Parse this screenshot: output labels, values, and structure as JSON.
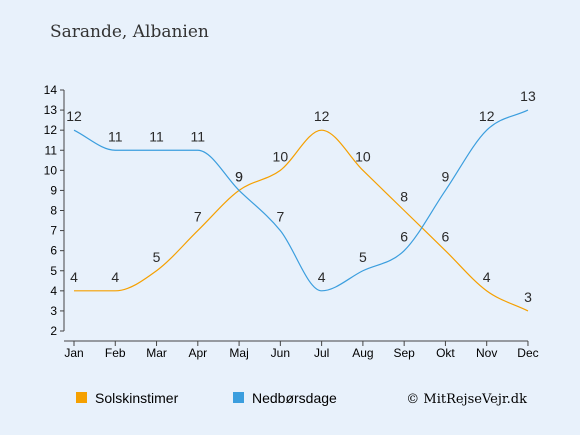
{
  "page": {
    "title": "Sarande, Albanien",
    "credit": "© MitRejseVejr.dk"
  },
  "colors": {
    "background": "#e8f1fb",
    "sun": "#f5a000",
    "rain": "#3b9ede",
    "axis": "#444444"
  },
  "chart_data": {
    "type": "line",
    "title": "Sarande, Albanien",
    "categories": [
      "Jan",
      "Feb",
      "Mar",
      "Apr",
      "Maj",
      "Jun",
      "Jul",
      "Aug",
      "Sep",
      "Okt",
      "Nov",
      "Dec"
    ],
    "series": [
      {
        "name": "Solskinstimer",
        "color": "#f5a000",
        "values": [
          4,
          4,
          5,
          7,
          9,
          10,
          12,
          10,
          8,
          6,
          4,
          3
        ]
      },
      {
        "name": "Nedbørsdage",
        "color": "#3b9ede",
        "values": [
          12,
          11,
          11,
          11,
          9,
          7,
          4,
          5,
          6,
          9,
          12,
          13
        ]
      }
    ],
    "yticks": [
      2,
      3,
      4,
      5,
      6,
      7,
      8,
      9,
      10,
      11,
      12,
      13,
      14
    ],
    "ylim": [
      2,
      14
    ],
    "grid": false,
    "legend_position": "bottom-left"
  }
}
